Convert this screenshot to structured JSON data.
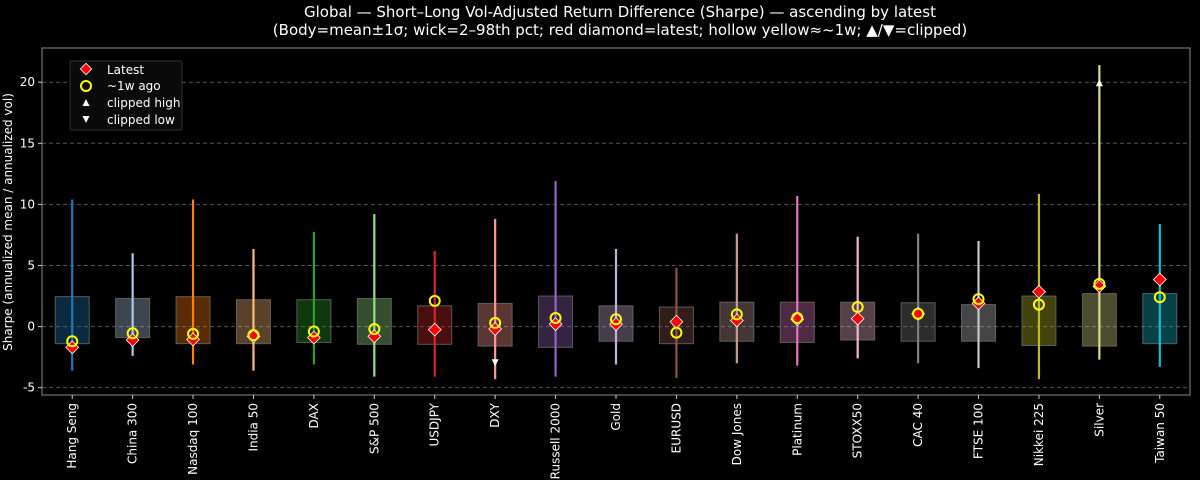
{
  "chart_data": {
    "type": "box",
    "title": "Global — Short–Long Vol-Adjusted Return Difference (Sharpe) — ascending by latest",
    "subtitle": "(Body=mean±1σ; wick=2–98th pct; red diamond=latest; hollow yellow≈~1w; ▲/▼=clipped)",
    "ylabel": "Sharpe (annualized mean / annualized vol)",
    "xlabel": "",
    "ylim": [
      -5.6,
      22.8
    ],
    "yticks": [
      -5,
      0,
      5,
      10,
      15,
      20
    ],
    "grid": "y-dashed",
    "legend_placement": "upper-left",
    "legend": [
      {
        "label": "Latest",
        "marker": "red-diamond"
      },
      {
        "label": "~1w ago",
        "marker": "hollow-yellow-circle"
      },
      {
        "label": "clipped high",
        "marker": "white-triangle-up"
      },
      {
        "label": "clipped low",
        "marker": "white-triangle-down"
      }
    ],
    "colors": {
      "latest": "#ff0000",
      "week_ago": "#ffff00",
      "clip": "#ffffff",
      "background": "#000000"
    },
    "categories": [
      "Hang Seng",
      "China 300",
      "Nasdaq 100",
      "India 50",
      "DAX",
      "S&P 500",
      "USDJPY",
      "DXY",
      "Russell 2000",
      "Gold",
      "EURUSD",
      "Dow Jones",
      "Platinum",
      "STOXX50",
      "CAC 40",
      "FTSE 100",
      "Nikkei 225",
      "Silver",
      "Taiwan 50"
    ],
    "series": [
      {
        "category": "Hang Seng",
        "color": "#1f77b4",
        "box_low": -1.4,
        "box_high": 2.45,
        "wick_low": -3.6,
        "wick_high": 10.4,
        "latest": -1.7,
        "week_ago": -1.2
      },
      {
        "category": "China 300",
        "color": "#aec7e8",
        "box_low": -0.9,
        "box_high": 2.3,
        "wick_low": -2.4,
        "wick_high": 6.0,
        "latest": -1.1,
        "week_ago": -0.55
      },
      {
        "category": "Nasdaq 100",
        "color": "#ff7f0e",
        "box_low": -1.4,
        "box_high": 2.45,
        "wick_low": -3.1,
        "wick_high": 10.4,
        "latest": -1.05,
        "week_ago": -0.6
      },
      {
        "category": "India 50",
        "color": "#ffbb78",
        "box_low": -1.4,
        "box_high": 2.2,
        "wick_low": -3.6,
        "wick_high": 6.35,
        "latest": -0.8,
        "week_ago": -0.7
      },
      {
        "category": "DAX",
        "color": "#2ca02c",
        "box_low": -1.3,
        "box_high": 2.2,
        "wick_low": -3.1,
        "wick_high": 7.75,
        "latest": -0.9,
        "week_ago": -0.4
      },
      {
        "category": "S&P 500",
        "color": "#98df8a",
        "box_low": -1.45,
        "box_high": 2.3,
        "wick_low": -4.1,
        "wick_high": 9.2,
        "latest": -0.8,
        "week_ago": -0.2
      },
      {
        "category": "USDJPY",
        "color": "#d62728",
        "box_low": -1.45,
        "box_high": 1.7,
        "wick_low": -4.1,
        "wick_high": 6.2,
        "latest": -0.25,
        "week_ago": 2.1
      },
      {
        "category": "DXY",
        "color": "#ff9896",
        "box_low": -1.6,
        "box_high": 1.9,
        "wick_low": -4.3,
        "wick_high": 8.8,
        "latest": -0.2,
        "week_ago": 0.3,
        "clipped_low": -3.0
      },
      {
        "category": "Russell 2000",
        "color": "#9467bd",
        "box_low": -1.7,
        "box_high": 2.5,
        "wick_low": -4.1,
        "wick_high": 11.9,
        "latest": 0.2,
        "week_ago": 0.7
      },
      {
        "category": "Gold",
        "color": "#c5b0d5",
        "box_low": -1.2,
        "box_high": 1.7,
        "wick_low": -3.1,
        "wick_high": 6.35,
        "latest": 0.2,
        "week_ago": 0.6
      },
      {
        "category": "EURUSD",
        "color": "#8c564b",
        "box_low": -1.4,
        "box_high": 1.6,
        "wick_low": -4.2,
        "wick_high": 4.8,
        "latest": 0.4,
        "week_ago": -0.5
      },
      {
        "category": "Dow Jones",
        "color": "#c49c94",
        "box_low": -1.2,
        "box_high": 2.0,
        "wick_low": -3.0,
        "wick_high": 7.6,
        "latest": 0.5,
        "week_ago": 1.0
      },
      {
        "category": "Platinum",
        "color": "#e377c2",
        "box_low": -1.3,
        "box_high": 2.0,
        "wick_low": -3.2,
        "wick_high": 10.7,
        "latest": 0.6,
        "week_ago": 0.7
      },
      {
        "category": "STOXX50",
        "color": "#f7b6d2",
        "box_low": -1.1,
        "box_high": 2.0,
        "wick_low": -2.6,
        "wick_high": 7.35,
        "latest": 0.65,
        "week_ago": 1.6
      },
      {
        "category": "CAC 40",
        "color": "#7f7f7f",
        "box_low": -1.2,
        "box_high": 1.95,
        "wick_low": -3.0,
        "wick_high": 7.6,
        "latest": 1.05,
        "week_ago": 1.05
      },
      {
        "category": "FTSE 100",
        "color": "#c7c7c7",
        "box_low": -1.2,
        "box_high": 1.8,
        "wick_low": -3.4,
        "wick_high": 7.0,
        "latest": 1.9,
        "week_ago": 2.25
      },
      {
        "category": "Nikkei 225",
        "color": "#bcbd22",
        "box_low": -1.55,
        "box_high": 2.5,
        "wick_low": -4.3,
        "wick_high": 10.85,
        "latest": 2.85,
        "week_ago": 1.8
      },
      {
        "category": "Silver",
        "color": "#dbdb8d",
        "box_low": -1.6,
        "box_high": 2.7,
        "wick_low": -2.7,
        "wick_high": 21.4,
        "latest": 3.3,
        "week_ago": 3.5,
        "clipped_high": 20.0
      },
      {
        "category": "Taiwan 50",
        "color": "#17becf",
        "box_low": -1.4,
        "box_high": 2.7,
        "wick_low": -3.3,
        "wick_high": 8.4,
        "latest": 3.85,
        "week_ago": 2.4
      }
    ]
  }
}
